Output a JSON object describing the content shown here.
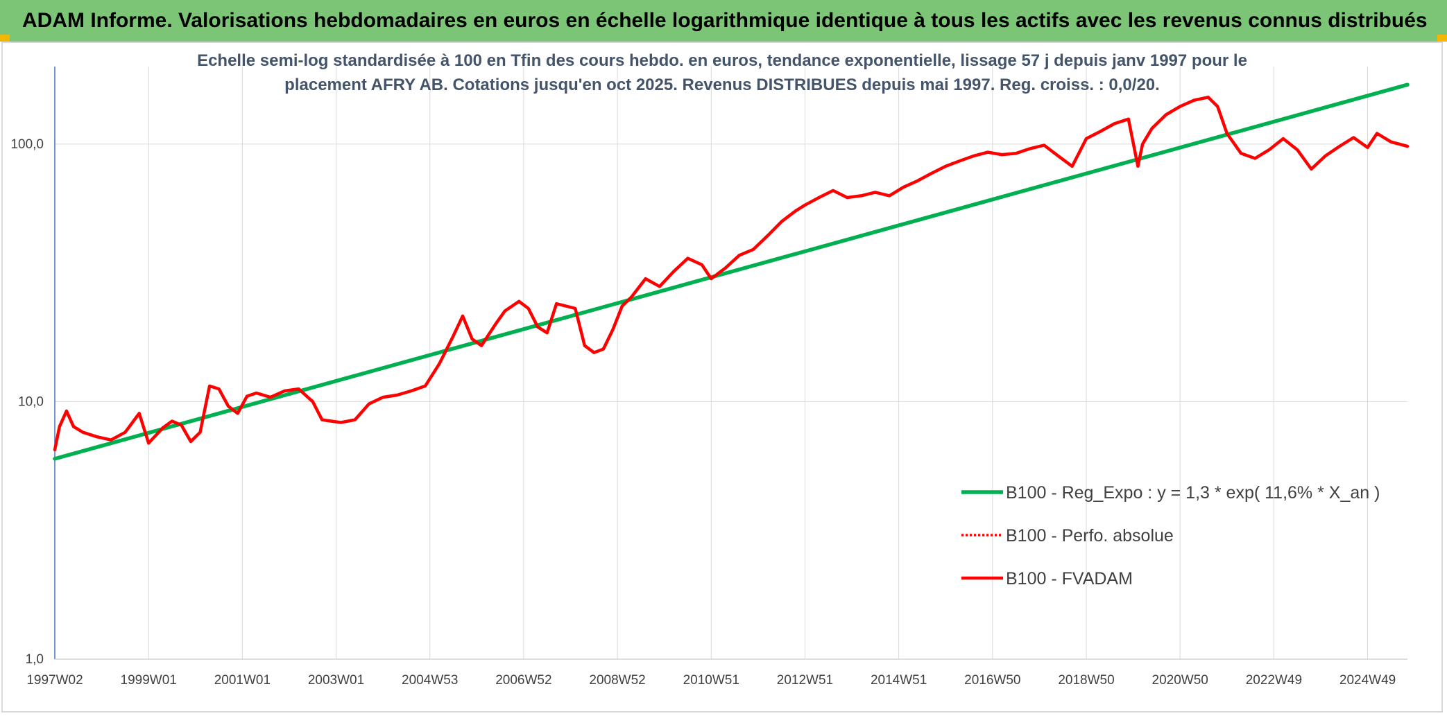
{
  "header": {
    "banner": "ADAM Informe. Valorisations hebdomadaires en euros en échelle logarithmique identique à tous les actifs avec les revenus connus distribués"
  },
  "colors": {
    "banner_bg": "#7cc576",
    "regression": "#00b050",
    "fvadam": "#ff0000",
    "grid": "#d9d9d9"
  },
  "chart_data": {
    "type": "line",
    "title_lines": [
      "Echelle semi-log standardisée à 100 en Tfin des cours hebdo. en euros, tendance exponentielle, lissage 57 j depuis janv 1997 pour le",
      "placement AFRY AB. Cotations jusqu'en oct 2025. Revenus DISTRIBUES depuis mai 1997. Reg. croiss. : 0,0/20."
    ],
    "y_scale": "log",
    "ylim": [
      1,
      200
    ],
    "y_ticks": [
      {
        "value": 1,
        "label": "1,0"
      },
      {
        "value": 10,
        "label": "10,0"
      },
      {
        "value": 100,
        "label": "100,0"
      }
    ],
    "xlim": [
      1997.0,
      2025.85
    ],
    "x_ticks": [
      {
        "x": 1997.0,
        "label": "1997W02"
      },
      {
        "x": 1999.0,
        "label": "1999W01"
      },
      {
        "x": 2001.0,
        "label": "2001W01"
      },
      {
        "x": 2003.0,
        "label": "2003W01"
      },
      {
        "x": 2005.0,
        "label": "2004W53"
      },
      {
        "x": 2007.0,
        "label": "2006W52"
      },
      {
        "x": 2009.0,
        "label": "2008W52"
      },
      {
        "x": 2011.0,
        "label": "2010W51"
      },
      {
        "x": 2013.0,
        "label": "2012W51"
      },
      {
        "x": 2015.0,
        "label": "2014W51"
      },
      {
        "x": 2017.0,
        "label": "2016W50"
      },
      {
        "x": 2019.0,
        "label": "2018W50"
      },
      {
        "x": 2021.0,
        "label": "2020W50"
      },
      {
        "x": 2023.0,
        "label": "2022W49"
      },
      {
        "x": 2025.0,
        "label": "2024W49"
      }
    ],
    "grid": true,
    "legend_position": "right-middle",
    "series": [
      {
        "name": "B100 - Reg_Expo : y = 1,3 * exp( 11,6% *  X_an )",
        "style": "solid-green",
        "x": [
          1997.0,
          2025.85
        ],
        "y": [
          6.0,
          170.0
        ]
      },
      {
        "name": "B100 - Perfo. absolue",
        "style": "dotted-red",
        "x": [],
        "y": []
      },
      {
        "name": "B100 - FVADAM",
        "style": "solid-red",
        "x": [
          1997.0,
          1997.1,
          1997.25,
          1997.4,
          1997.6,
          1997.9,
          1998.2,
          1998.5,
          1998.8,
          1999.0,
          1999.3,
          1999.5,
          1999.7,
          1999.9,
          2000.1,
          2000.3,
          2000.5,
          2000.7,
          2000.9,
          2001.1,
          2001.3,
          2001.6,
          2001.9,
          2002.2,
          2002.5,
          2002.7,
          2002.9,
          2003.1,
          2003.4,
          2003.7,
          2004.0,
          2004.3,
          2004.6,
          2004.9,
          2005.2,
          2005.5,
          2005.7,
          2005.9,
          2006.1,
          2006.4,
          2006.6,
          2006.9,
          2007.1,
          2007.3,
          2007.5,
          2007.7,
          2007.9,
          2008.1,
          2008.3,
          2008.5,
          2008.7,
          2008.9,
          2009.1,
          2009.3,
          2009.6,
          2009.9,
          2010.2,
          2010.5,
          2010.8,
          2011.0,
          2011.3,
          2011.6,
          2011.9,
          2012.2,
          2012.5,
          2012.8,
          2013.0,
          2013.3,
          2013.6,
          2013.9,
          2014.2,
          2014.5,
          2014.8,
          2015.1,
          2015.4,
          2015.7,
          2016.0,
          2016.3,
          2016.6,
          2016.9,
          2017.2,
          2017.5,
          2017.8,
          2018.1,
          2018.4,
          2018.7,
          2019.0,
          2019.3,
          2019.6,
          2019.9,
          2020.1,
          2020.2,
          2020.4,
          2020.7,
          2021.0,
          2021.3,
          2021.6,
          2021.8,
          2022.0,
          2022.3,
          2022.6,
          2022.9,
          2023.2,
          2023.5,
          2023.8,
          2024.1,
          2024.4,
          2024.7,
          2025.0,
          2025.2,
          2025.5,
          2025.85
        ],
        "y": [
          6.5,
          8.0,
          9.2,
          8.0,
          7.6,
          7.3,
          7.1,
          7.6,
          9.0,
          6.9,
          7.9,
          8.4,
          8.1,
          7.0,
          7.6,
          11.5,
          11.2,
          9.6,
          9.0,
          10.5,
          10.8,
          10.4,
          11.0,
          11.2,
          10.0,
          8.5,
          8.4,
          8.3,
          8.5,
          9.8,
          10.4,
          10.6,
          11.0,
          11.5,
          14.0,
          18.0,
          21.5,
          17.5,
          16.5,
          20.0,
          22.5,
          24.5,
          23.0,
          19.5,
          18.5,
          24.0,
          23.5,
          23.0,
          16.5,
          15.5,
          16.0,
          19.0,
          23.5,
          25.5,
          30.0,
          28.0,
          32.0,
          36.0,
          34.0,
          30.0,
          33.0,
          37.0,
          39.0,
          44.0,
          50.0,
          55.0,
          58.0,
          62.0,
          66.0,
          62.0,
          63.0,
          65.0,
          63.0,
          68.0,
          72.0,
          77.0,
          82.0,
          86.0,
          90.0,
          93.0,
          91.0,
          92.0,
          96.0,
          99.0,
          90.0,
          82.0,
          105.0,
          112.0,
          120.0,
          125.0,
          82.0,
          100.0,
          115.0,
          130.0,
          140.0,
          148.0,
          152.0,
          140.0,
          110.0,
          92.0,
          88.0,
          95.0,
          105.0,
          95.0,
          80.0,
          90.0,
          98.0,
          106.0,
          97.0,
          110.0,
          102.0,
          98.0
        ]
      }
    ]
  }
}
